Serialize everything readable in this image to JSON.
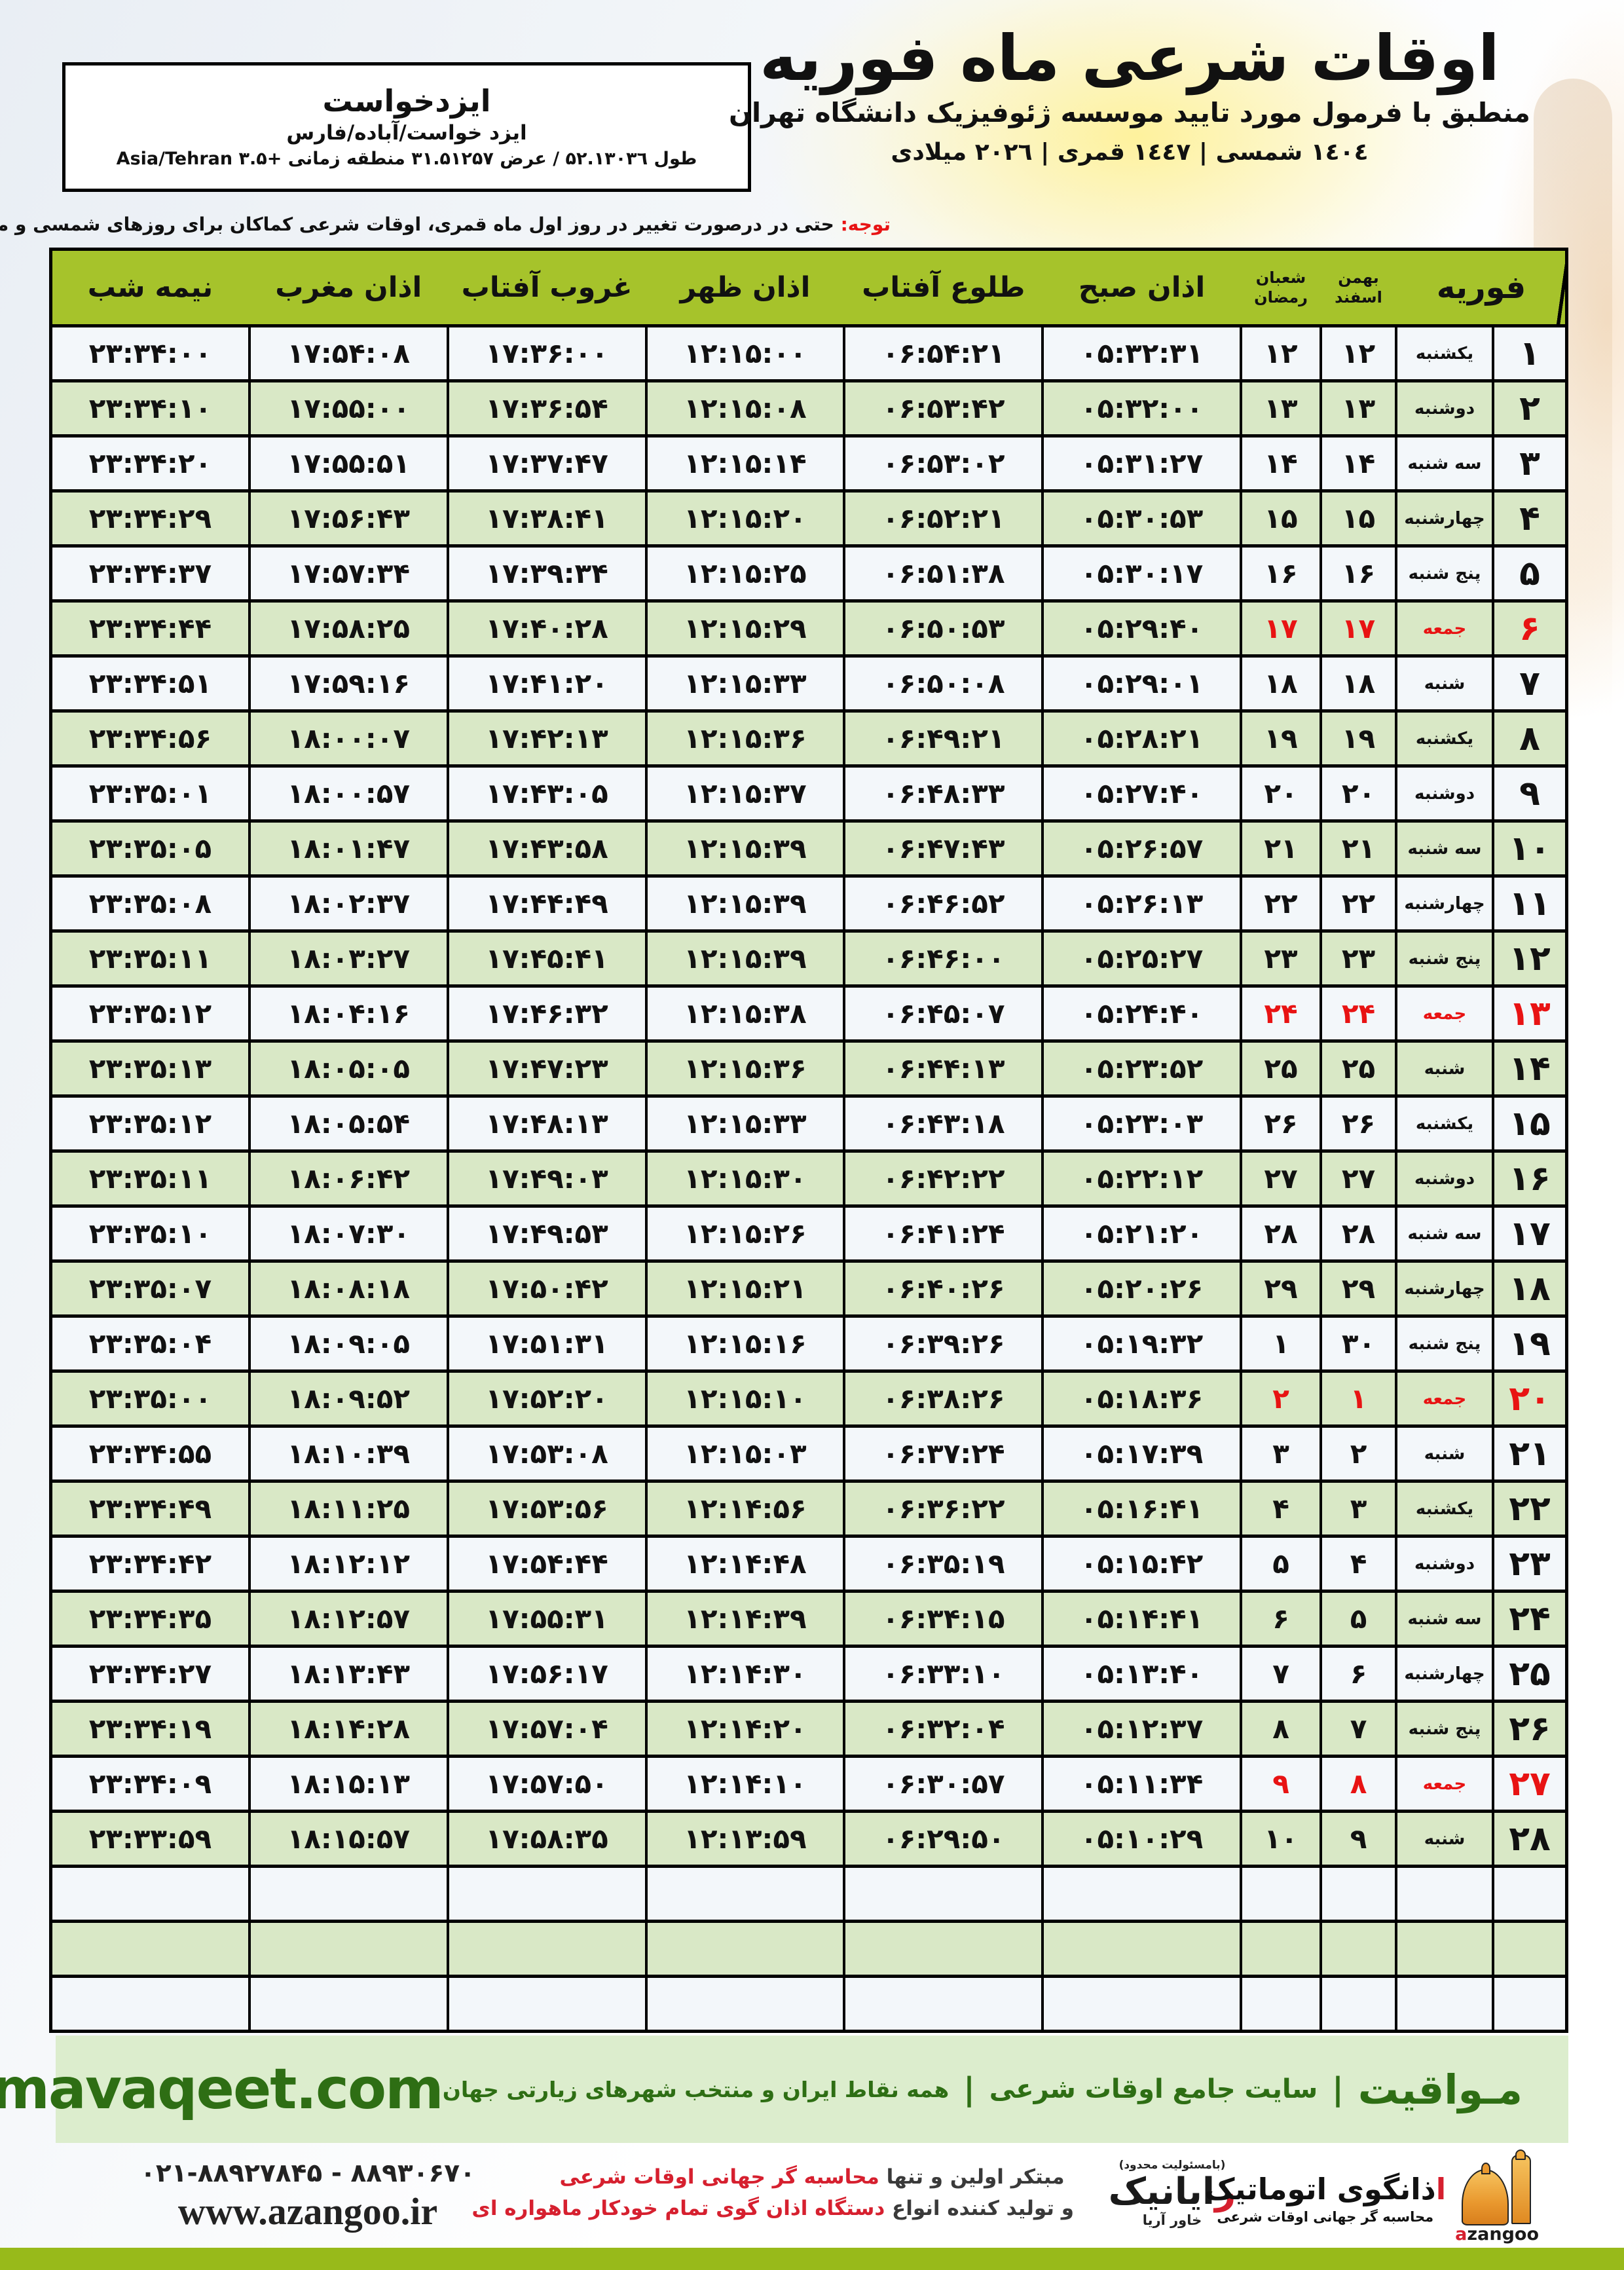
{
  "colors": {
    "header_green": "#a6c32b",
    "row_green": "#d9e8c6",
    "row_white": "#f3f7fa",
    "accent_red": "#e81313",
    "footer_band_bg": "#dcedcd",
    "footer_green": "#2e6e14",
    "bottom_strip_green": "#98ba1a",
    "logo_orange": "#e9982e"
  },
  "location_box": {
    "name": "ایزدخواست",
    "region": "ایزد خواست/آباده/فارس",
    "coords": "طول ۵۲.۱۳۰۳٦ / عرض ۳۱.۵۱۲۵۷ منطقه زمانی +۳.۵ Asia/Tehran"
  },
  "header": {
    "title": "اوقات شرعی ماه فوریه",
    "subtitle": "منطبق با فرمول مورد تایید موسسه ژئوفیزیک دانشگاه تهران",
    "calendar_line": "١٤٠٤ شمسی | ١٤٤٧ قمری | ٢٠٢٦ میلادی"
  },
  "notice": {
    "label": "توجه:",
    "text": " حتی در درصورت تغییر در روز اول ماه قمری، اوقات شرعی کماکان برای روزهای شمسی و میلادی معتبر است."
  },
  "table": {
    "month_header": "فوریه",
    "solar_month_top": "بهمن",
    "solar_month_bottom": "اسفند",
    "lunar_month_top": "شعبان",
    "lunar_month_bottom": "رمضان",
    "time_headers": [
      "اذان صبح",
      "طلوع آفتاب",
      "اذان ظهر",
      "غروب آفتاب",
      "اذان مغرب",
      "نیمه شب"
    ],
    "empty_row_count": 3,
    "rows": [
      {
        "feb": 1,
        "weekday": "یکشنبه",
        "solar": 12,
        "lunar": 12,
        "friday": false,
        "times": [
          "05:32:31",
          "06:54:21",
          "12:15:00",
          "17:36:00",
          "17:54:08",
          "23:34:00"
        ]
      },
      {
        "feb": 2,
        "weekday": "دوشنبه",
        "solar": 13,
        "lunar": 13,
        "friday": false,
        "times": [
          "05:32:00",
          "06:53:42",
          "12:15:08",
          "17:36:54",
          "17:55:00",
          "23:34:10"
        ]
      },
      {
        "feb": 3,
        "weekday": "سه شنبه",
        "solar": 14,
        "lunar": 14,
        "friday": false,
        "times": [
          "05:31:27",
          "06:53:02",
          "12:15:14",
          "17:37:47",
          "17:55:51",
          "23:34:20"
        ]
      },
      {
        "feb": 4,
        "weekday": "چهارشنبه",
        "solar": 15,
        "lunar": 15,
        "friday": false,
        "times": [
          "05:30:53",
          "06:52:21",
          "12:15:20",
          "17:38:41",
          "17:56:43",
          "23:34:29"
        ]
      },
      {
        "feb": 5,
        "weekday": "پنج شنبه",
        "solar": 16,
        "lunar": 16,
        "friday": false,
        "times": [
          "05:30:17",
          "06:51:38",
          "12:15:25",
          "17:39:34",
          "17:57:34",
          "23:34:37"
        ]
      },
      {
        "feb": 6,
        "weekday": "جمعه",
        "solar": 17,
        "lunar": 17,
        "friday": true,
        "times": [
          "05:29:40",
          "06:50:53",
          "12:15:29",
          "17:40:28",
          "17:58:25",
          "23:34:44"
        ]
      },
      {
        "feb": 7,
        "weekday": "شنبه",
        "solar": 18,
        "lunar": 18,
        "friday": false,
        "times": [
          "05:29:01",
          "06:50:08",
          "12:15:33",
          "17:41:20",
          "17:59:16",
          "23:34:51"
        ]
      },
      {
        "feb": 8,
        "weekday": "یکشنبه",
        "solar": 19,
        "lunar": 19,
        "friday": false,
        "times": [
          "05:28:21",
          "06:49:21",
          "12:15:36",
          "17:42:13",
          "18:00:07",
          "23:34:56"
        ]
      },
      {
        "feb": 9,
        "weekday": "دوشنبه",
        "solar": 20,
        "lunar": 20,
        "friday": false,
        "times": [
          "05:27:40",
          "06:48:33",
          "12:15:37",
          "17:43:05",
          "18:00:57",
          "23:35:01"
        ]
      },
      {
        "feb": 10,
        "weekday": "سه شنبه",
        "solar": 21,
        "lunar": 21,
        "friday": false,
        "times": [
          "05:26:57",
          "06:47:43",
          "12:15:39",
          "17:43:58",
          "18:01:47",
          "23:35:05"
        ]
      },
      {
        "feb": 11,
        "weekday": "چهارشنبه",
        "solar": 22,
        "lunar": 22,
        "friday": false,
        "times": [
          "05:26:13",
          "06:46:52",
          "12:15:39",
          "17:44:49",
          "18:02:37",
          "23:35:08"
        ]
      },
      {
        "feb": 12,
        "weekday": "پنج شنبه",
        "solar": 23,
        "lunar": 23,
        "friday": false,
        "times": [
          "05:25:27",
          "06:46:00",
          "12:15:39",
          "17:45:41",
          "18:03:27",
          "23:35:11"
        ]
      },
      {
        "feb": 13,
        "weekday": "جمعه",
        "solar": 24,
        "lunar": 24,
        "friday": true,
        "times": [
          "05:24:40",
          "06:45:07",
          "12:15:38",
          "17:46:32",
          "18:04:16",
          "23:35:12"
        ]
      },
      {
        "feb": 14,
        "weekday": "شنبه",
        "solar": 25,
        "lunar": 25,
        "friday": false,
        "times": [
          "05:23:52",
          "06:44:13",
          "12:15:36",
          "17:47:23",
          "18:05:05",
          "23:35:13"
        ]
      },
      {
        "feb": 15,
        "weekday": "یکشنبه",
        "solar": 26,
        "lunar": 26,
        "friday": false,
        "times": [
          "05:23:03",
          "06:43:18",
          "12:15:33",
          "17:48:13",
          "18:05:54",
          "23:35:12"
        ]
      },
      {
        "feb": 16,
        "weekday": "دوشنبه",
        "solar": 27,
        "lunar": 27,
        "friday": false,
        "times": [
          "05:22:12",
          "06:42:22",
          "12:15:30",
          "17:49:03",
          "18:06:42",
          "23:35:11"
        ]
      },
      {
        "feb": 17,
        "weekday": "سه شنبه",
        "solar": 28,
        "lunar": 28,
        "friday": false,
        "times": [
          "05:21:20",
          "06:41:24",
          "12:15:26",
          "17:49:53",
          "18:07:30",
          "23:35:10"
        ]
      },
      {
        "feb": 18,
        "weekday": "چهارشنبه",
        "solar": 29,
        "lunar": 29,
        "friday": false,
        "times": [
          "05:20:26",
          "06:40:26",
          "12:15:21",
          "17:50:42",
          "18:08:18",
          "23:35:07"
        ]
      },
      {
        "feb": 19,
        "weekday": "پنج شنبه",
        "solar": 30,
        "lunar": 1,
        "friday": false,
        "times": [
          "05:19:32",
          "06:39:26",
          "12:15:16",
          "17:51:31",
          "18:09:05",
          "23:35:04"
        ]
      },
      {
        "feb": 20,
        "weekday": "جمعه",
        "solar": 1,
        "lunar": 2,
        "friday": true,
        "times": [
          "05:18:36",
          "06:38:26",
          "12:15:10",
          "17:52:20",
          "18:09:52",
          "23:35:00"
        ]
      },
      {
        "feb": 21,
        "weekday": "شنبه",
        "solar": 2,
        "lunar": 3,
        "friday": false,
        "times": [
          "05:17:39",
          "06:37:24",
          "12:15:03",
          "17:53:08",
          "18:10:39",
          "23:34:55"
        ]
      },
      {
        "feb": 22,
        "weekday": "یکشنبه",
        "solar": 3,
        "lunar": 4,
        "friday": false,
        "times": [
          "05:16:41",
          "06:36:22",
          "12:14:56",
          "17:53:56",
          "18:11:25",
          "23:34:49"
        ]
      },
      {
        "feb": 23,
        "weekday": "دوشنبه",
        "solar": 4,
        "lunar": 5,
        "friday": false,
        "times": [
          "05:15:42",
          "06:35:19",
          "12:14:48",
          "17:54:44",
          "18:12:12",
          "23:34:42"
        ]
      },
      {
        "feb": 24,
        "weekday": "سه شنبه",
        "solar": 5,
        "lunar": 6,
        "friday": false,
        "times": [
          "05:14:41",
          "06:34:15",
          "12:14:39",
          "17:55:31",
          "18:12:57",
          "23:34:35"
        ]
      },
      {
        "feb": 25,
        "weekday": "چهارشنبه",
        "solar": 6,
        "lunar": 7,
        "friday": false,
        "times": [
          "05:13:40",
          "06:33:10",
          "12:14:30",
          "17:56:17",
          "18:13:43",
          "23:34:27"
        ]
      },
      {
        "feb": 26,
        "weekday": "پنج شنبه",
        "solar": 7,
        "lunar": 8,
        "friday": false,
        "times": [
          "05:12:37",
          "06:32:04",
          "12:14:20",
          "17:57:04",
          "18:14:28",
          "23:34:19"
        ]
      },
      {
        "feb": 27,
        "weekday": "جمعه",
        "solar": 8,
        "lunar": 9,
        "friday": true,
        "times": [
          "05:11:34",
          "06:30:57",
          "12:14:10",
          "17:57:50",
          "18:15:13",
          "23:34:09"
        ]
      },
      {
        "feb": 28,
        "weekday": "شنبه",
        "solar": 9,
        "lunar": 10,
        "friday": false,
        "times": [
          "05:10:29",
          "06:29:50",
          "12:13:59",
          "17:58:35",
          "18:15:57",
          "23:33:59"
        ]
      }
    ]
  },
  "footer_band": {
    "brand": "مـواقیت",
    "tagline1": "سایت جامع اوقات شرعی",
    "tagline2": "همه نقاط ایران و منتخب شهرهای زیارتی جهان",
    "site": "mavaqeet.com"
  },
  "bottom": {
    "phones": "۰۲۱-۸۸۹۲۷۸۴۵ - ۸۸۹۳۰۶۷۰",
    "website": "www.azangoo.ir",
    "promo_line1_black": "مبتکر اولین و تنها ",
    "promo_line1_red": "محاسبه گر جهانی اوقات شرعی",
    "promo_line2_black": "و تولید کننده انواع ",
    "promo_line2_red": "دستگاه اذان گوی تمام خودکار ماهواره ای",
    "rayanik_note": "(بامسئولیت محدود)",
    "rayanik_first": "ر",
    "rayanik_rest": "ایانیک",
    "rayanik_sub": "خاور آریا",
    "azangoo_fa_first": "ا",
    "azangoo_fa_rest": "ذانگوی اتوماتیک",
    "azangoo_sub": "محاسبه گر جهانی اوقات شرعی",
    "azangoo_en_first": "a",
    "azangoo_en_rest": "zangoo"
  }
}
